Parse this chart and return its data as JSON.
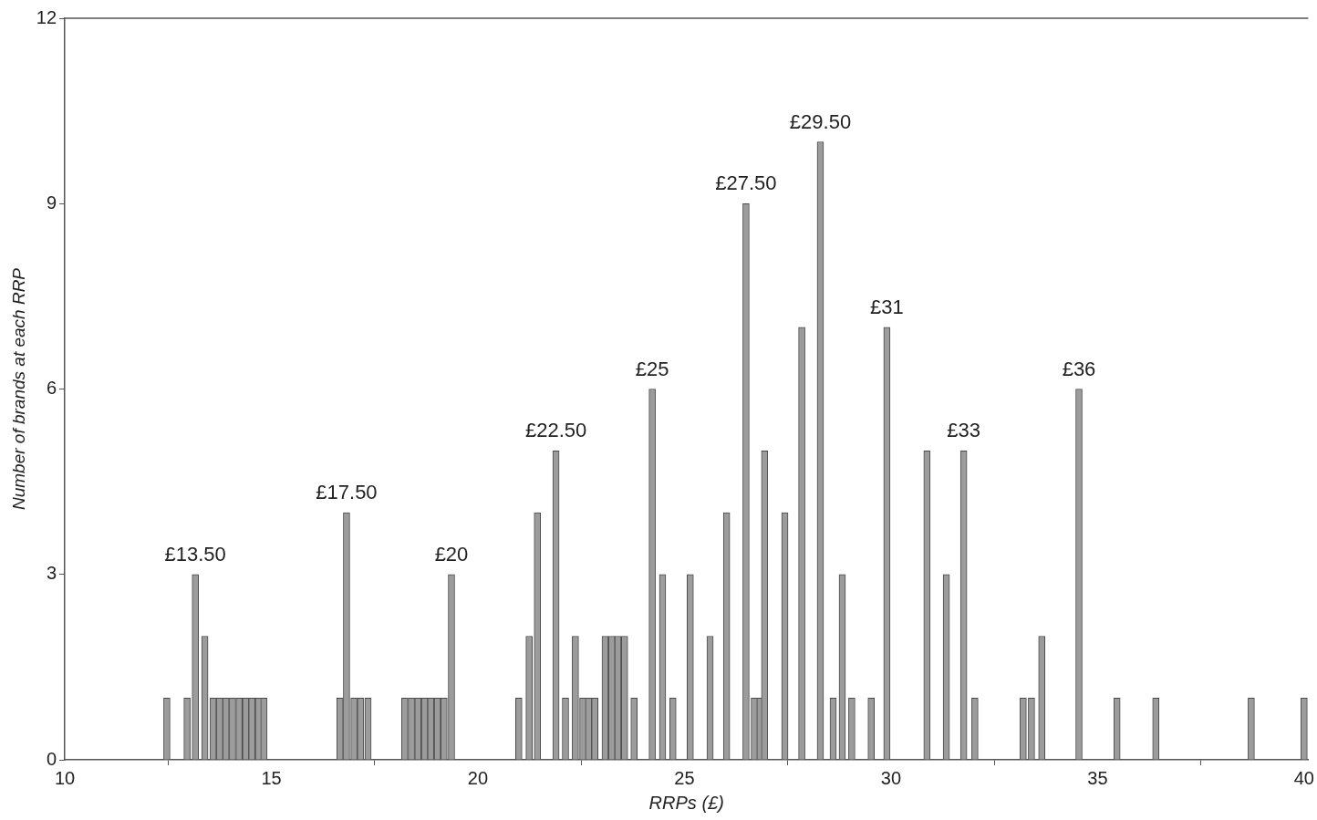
{
  "chart_data": {
    "type": "bar",
    "xlabel": "RRPs (£)",
    "ylabel": "Number of brands at each RRP",
    "x": [
      12.47,
      12.96,
      13.16,
      13.39,
      13.59,
      13.75,
      13.9,
      14.06,
      14.22,
      14.38,
      14.53,
      14.69,
      14.82,
      16.66,
      16.82,
      17.0,
      17.16,
      17.34,
      18.23,
      18.39,
      18.55,
      18.71,
      18.86,
      19.02,
      19.18,
      19.36,
      20.99,
      21.24,
      21.44,
      21.89,
      22.12,
      22.36,
      22.54,
      22.68,
      22.83,
      23.08,
      23.24,
      23.39,
      23.55,
      23.78,
      24.22,
      24.47,
      24.72,
      25.14,
      25.62,
      26.02,
      26.49,
      26.69,
      26.83,
      26.94,
      27.43,
      27.84,
      28.29,
      28.6,
      28.82,
      29.05,
      29.52,
      29.9,
      30.87,
      31.34,
      31.76,
      32.03,
      33.2,
      33.4,
      33.65,
      34.55,
      35.47,
      36.41,
      38.72,
      40.0
    ],
    "values": [
      1,
      1,
      3,
      2,
      1,
      1,
      1,
      1,
      1,
      1,
      1,
      1,
      1,
      1,
      4,
      1,
      1,
      1,
      1,
      1,
      1,
      1,
      1,
      1,
      1,
      3,
      1,
      2,
      4,
      5,
      1,
      2,
      1,
      1,
      1,
      2,
      2,
      2,
      2,
      1,
      6,
      3,
      1,
      3,
      2,
      4,
      9,
      1,
      1,
      5,
      4,
      7,
      10,
      1,
      3,
      1,
      1,
      7,
      5,
      3,
      5,
      1,
      1,
      1,
      2,
      6,
      1,
      1,
      1,
      1
    ],
    "color": "#9c9c9c",
    "xlim": [
      10,
      40.1
    ],
    "xticks": [
      10,
      15,
      20,
      25,
      30,
      35,
      40
    ],
    "ylim": [
      0,
      12
    ],
    "yticks": [
      0,
      3,
      6,
      9,
      12
    ],
    "grid": false,
    "legend": false,
    "annotations": [
      {
        "text": "£13.50",
        "x": 13.16,
        "y": 3
      },
      {
        "text": "£17.50",
        "x": 16.82,
        "y": 4
      },
      {
        "text": "£20",
        "x": 19.36,
        "y": 3
      },
      {
        "text": "£22.50",
        "x": 21.89,
        "y": 5
      },
      {
        "text": "£25",
        "x": 24.22,
        "y": 6
      },
      {
        "text": "£27.50",
        "x": 26.49,
        "y": 9
      },
      {
        "text": "£29.50",
        "x": 28.29,
        "y": 10
      },
      {
        "text": "£31",
        "x": 29.9,
        "y": 7
      },
      {
        "text": "£33",
        "x": 31.76,
        "y": 5
      },
      {
        "text": "£36",
        "x": 34.55,
        "y": 6
      }
    ]
  }
}
